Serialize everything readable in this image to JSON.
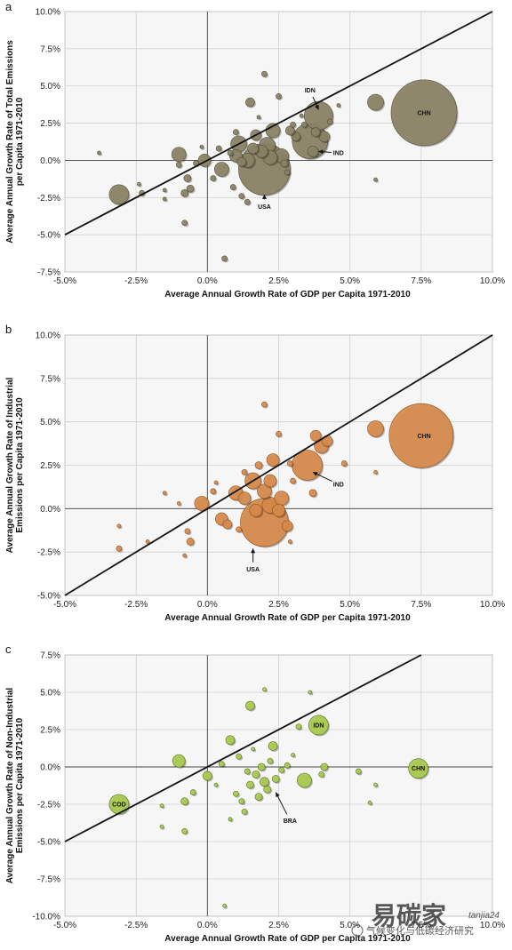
{
  "colors": {
    "panel_a_fill": "#8c8466",
    "panel_b_fill": "#d98c4c",
    "panel_c_fill": "#aacd4e",
    "plot_bg": "#f6f6f6",
    "grid": "#cfcfcf",
    "diagonal": "#111111"
  },
  "watermark": {
    "logo_text": "易碳家",
    "logo_sub": "tanjia24",
    "caption": "气候变化与低碳经济研究"
  },
  "chart_data": [
    {
      "panel": "a",
      "type": "scatter",
      "xlabel": "Average Annual Growth Rate of GDP per Capita 1971-2010",
      "ylabel_lines": [
        "Average Annual Growth Rate of Total Emissions",
        "per Capita 1971-2010"
      ],
      "xlim": [
        -5,
        10
      ],
      "ylim": [
        -7.5,
        10
      ],
      "xticks": [
        "-5.0%",
        "-2.5%",
        "0.0%",
        "2.5%",
        "5.0%",
        "7.5%",
        "10.0%"
      ],
      "yticks": [
        "-7.5%",
        "-5.0%",
        "-2.5%",
        "0.0%",
        "2.5%",
        "5.0%",
        "7.5%",
        "10.0%"
      ],
      "diagonal": [
        [
          -5,
          -5
        ],
        [
          10,
          10
        ]
      ],
      "annotations": [
        {
          "text": "CHN",
          "x": 7.6,
          "y": 3.2,
          "style": "inside"
        },
        {
          "text": "IDN",
          "x": 3.6,
          "y": 4.7,
          "style": "arrow",
          "to_x": 3.9,
          "to_y": 3.4
        },
        {
          "text": "IND",
          "x": 4.6,
          "y": 0.5,
          "style": "arrow",
          "to_x": 3.9,
          "to_y": 0.6
        },
        {
          "text": "USA",
          "x": 2.0,
          "y": -3.1,
          "style": "arrow",
          "to_x": 2.0,
          "to_y": -2.3
        }
      ],
      "points": [
        {
          "x": 7.6,
          "y": 3.2,
          "r": 37
        },
        {
          "x": 3.9,
          "y": 3.0,
          "r": 16
        },
        {
          "x": 3.6,
          "y": 1.3,
          "r": 20
        },
        {
          "x": 2.0,
          "y": -0.6,
          "r": 29
        },
        {
          "x": -3.1,
          "y": -2.3,
          "r": 11
        },
        {
          "x": 5.9,
          "y": 3.9,
          "r": 9
        },
        {
          "x": -1.0,
          "y": 0.4,
          "r": 8
        },
        {
          "x": 0.5,
          "y": -0.6,
          "r": 8
        },
        {
          "x": -0.1,
          "y": 0.0,
          "r": 7
        },
        {
          "x": 1.1,
          "y": 1.1,
          "r": 9
        },
        {
          "x": 1.5,
          "y": 3.9,
          "r": 5
        },
        {
          "x": 1.7,
          "y": 1.7,
          "r": 6
        },
        {
          "x": 2.1,
          "y": 1.0,
          "r": 9
        },
        {
          "x": 2.3,
          "y": 2.0,
          "r": 8
        },
        {
          "x": 2.6,
          "y": 0.3,
          "r": 8
        },
        {
          "x": 1.4,
          "y": 0.0,
          "r": 8
        },
        {
          "x": 1.0,
          "y": 0.3,
          "r": 7
        },
        {
          "x": 3.1,
          "y": 1.6,
          "r": 5
        },
        {
          "x": 4.1,
          "y": 1.6,
          "r": 6
        },
        {
          "x": 3.8,
          "y": 1.9,
          "r": 5
        },
        {
          "x": 3.7,
          "y": 0.6,
          "r": 6
        },
        {
          "x": 2.9,
          "y": 2.0,
          "r": 5
        },
        {
          "x": 1.9,
          "y": 0.6,
          "r": 7
        },
        {
          "x": 1.6,
          "y": 0.8,
          "r": 6
        },
        {
          "x": 2.2,
          "y": 0.2,
          "r": 8
        },
        {
          "x": 1.2,
          "y": -0.1,
          "r": 5
        },
        {
          "x": -0.8,
          "y": -2.2,
          "r": 4
        },
        {
          "x": -0.6,
          "y": -1.9,
          "r": 4
        },
        {
          "x": -0.7,
          "y": -1.2,
          "r": 4
        },
        {
          "x": -0.8,
          "y": -4.2,
          "r": 3
        },
        {
          "x": -2.3,
          "y": -2.2,
          "r": 3
        },
        {
          "x": 0.6,
          "y": -6.6,
          "r": 3
        },
        {
          "x": 2.0,
          "y": 5.8,
          "r": 3
        },
        {
          "x": 2.5,
          "y": 4.3,
          "r": 3
        },
        {
          "x": 0.9,
          "y": -1.8,
          "r": 3
        },
        {
          "x": 1.2,
          "y": -2.4,
          "r": 3
        },
        {
          "x": 1.4,
          "y": -2.8,
          "r": 3
        },
        {
          "x": 0.2,
          "y": -1.2,
          "r": 3
        },
        {
          "x": -0.4,
          "y": -0.2,
          "r": 3
        },
        {
          "x": -1.0,
          "y": -0.3,
          "r": 3
        },
        {
          "x": 0.4,
          "y": 0.8,
          "r": 3
        },
        {
          "x": 0.8,
          "y": 0.5,
          "r": 3
        },
        {
          "x": 2.7,
          "y": -0.2,
          "r": 4
        },
        {
          "x": 3.0,
          "y": 2.4,
          "r": 3
        },
        {
          "x": 3.4,
          "y": 2.4,
          "r": 3
        },
        {
          "x": 4.3,
          "y": 2.6,
          "r": 3
        },
        {
          "x": 4.6,
          "y": 3.7,
          "r": 2
        },
        {
          "x": 5.9,
          "y": -1.3,
          "r": 2
        },
        {
          "x": -2.4,
          "y": -1.6,
          "r": 2
        },
        {
          "x": -1.5,
          "y": -2.0,
          "r": 2
        },
        {
          "x": -1.5,
          "y": -2.6,
          "r": 2
        },
        {
          "x": -0.2,
          "y": 0.9,
          "r": 2
        },
        {
          "x": 1.8,
          "y": 2.9,
          "r": 2
        },
        {
          "x": 2.8,
          "y": -0.8,
          "r": 3
        },
        {
          "x": -3.8,
          "y": 0.5,
          "r": 2
        },
        {
          "x": 3.3,
          "y": 3.0,
          "r": 2
        },
        {
          "x": 1.0,
          "y": 1.9,
          "r": 3
        }
      ]
    },
    {
      "panel": "b",
      "type": "scatter",
      "xlabel": "Average Annual Growth Rate of GDP per Capita 1971-2010",
      "ylabel_lines": [
        "Average Annual Growth Rate of Industrial",
        "Emissions per Capita 1971-2010"
      ],
      "xlim": [
        -5,
        10
      ],
      "ylim": [
        -5,
        10
      ],
      "xticks": [
        "-5.0%",
        "-2.5%",
        "0.0%",
        "2.5%",
        "5.0%",
        "7.5%",
        "10.0%"
      ],
      "yticks": [
        "-5.0%",
        "-2.5%",
        "0.0%",
        "2.5%",
        "5.0%",
        "7.5%",
        "10.0%"
      ],
      "diagonal": [
        [
          -5,
          -5
        ],
        [
          10,
          10
        ]
      ],
      "annotations": [
        {
          "text": "CHN",
          "x": 7.6,
          "y": 4.2,
          "style": "inside"
        },
        {
          "text": "IND",
          "x": 4.6,
          "y": 1.4,
          "style": "arrow",
          "to_x": 3.7,
          "to_y": 2.1
        },
        {
          "text": "USA",
          "x": 1.6,
          "y": -3.5,
          "style": "arrow",
          "to_x": 1.6,
          "to_y": -2.3
        }
      ],
      "points": [
        {
          "x": 7.5,
          "y": 4.2,
          "r": 36
        },
        {
          "x": 3.5,
          "y": 2.5,
          "r": 17
        },
        {
          "x": 2.0,
          "y": -0.8,
          "r": 27
        },
        {
          "x": 5.9,
          "y": 4.6,
          "r": 9
        },
        {
          "x": 4.0,
          "y": 3.6,
          "r": 8
        },
        {
          "x": 4.2,
          "y": 3.9,
          "r": 6
        },
        {
          "x": 3.8,
          "y": 4.2,
          "r": 6
        },
        {
          "x": 2.3,
          "y": 2.8,
          "r": 7
        },
        {
          "x": 1.6,
          "y": 1.6,
          "r": 9
        },
        {
          "x": 1.0,
          "y": 0.9,
          "r": 8
        },
        {
          "x": 1.3,
          "y": 0.6,
          "r": 7
        },
        {
          "x": 2.2,
          "y": 1.6,
          "r": 7
        },
        {
          "x": 2.0,
          "y": 1.0,
          "r": 8
        },
        {
          "x": 2.6,
          "y": 0.6,
          "r": 8
        },
        {
          "x": 2.2,
          "y": 0.2,
          "r": 9
        },
        {
          "x": 2.5,
          "y": -0.1,
          "r": 7
        },
        {
          "x": 1.7,
          "y": -0.1,
          "r": 7
        },
        {
          "x": 2.8,
          "y": -1.0,
          "r": 6
        },
        {
          "x": -0.2,
          "y": 0.3,
          "r": 8
        },
        {
          "x": 0.5,
          "y": -0.6,
          "r": 7
        },
        {
          "x": -0.6,
          "y": -1.9,
          "r": 4
        },
        {
          "x": 0.7,
          "y": -0.9,
          "r": 5
        },
        {
          "x": -3.1,
          "y": -2.3,
          "r": 3
        },
        {
          "x": 2.0,
          "y": 6.0,
          "r": 3
        },
        {
          "x": 2.5,
          "y": 4.3,
          "r": 3
        },
        {
          "x": 3.7,
          "y": 0.9,
          "r": 4
        },
        {
          "x": 4.8,
          "y": 2.6,
          "r": 3
        },
        {
          "x": 1.3,
          "y": 2.1,
          "r": 3
        },
        {
          "x": 0.2,
          "y": 1.0,
          "r": 3
        },
        {
          "x": -1.5,
          "y": 0.9,
          "r": 2
        },
        {
          "x": -0.7,
          "y": -1.3,
          "r": 3
        },
        {
          "x": -0.8,
          "y": -2.7,
          "r": 2
        },
        {
          "x": 2.9,
          "y": 2.6,
          "r": 3
        },
        {
          "x": 0.3,
          "y": 1.5,
          "r": 2
        },
        {
          "x": -1.0,
          "y": 0.3,
          "r": 2
        },
        {
          "x": -3.1,
          "y": -1.0,
          "r": 2
        },
        {
          "x": 1.8,
          "y": 2.5,
          "r": 4
        },
        {
          "x": 3.0,
          "y": 1.6,
          "r": 3
        },
        {
          "x": 5.9,
          "y": 2.1,
          "r": 2
        },
        {
          "x": -2.1,
          "y": -1.9,
          "r": 2
        },
        {
          "x": 1.1,
          "y": -1.2,
          "r": 3
        },
        {
          "x": 2.9,
          "y": -1.9,
          "r": 2
        }
      ]
    },
    {
      "panel": "c",
      "type": "scatter",
      "xlabel": "Average Annual Growth Rate of GDP per Capita 1971-2010",
      "ylabel_lines": [
        "Average Annual Growth Rate of Non-Industrial",
        "Emissions per Capita 1971-2010"
      ],
      "xlim": [
        -5,
        10
      ],
      "ylim": [
        -10,
        7.5
      ],
      "xticks": [
        "-5.0%",
        "-2.5%",
        "0.0%",
        "2.5%",
        "5.0%",
        "7.5%",
        "10.0%"
      ],
      "yticks": [
        "-10.0%",
        "-7.5%",
        "-5.0%",
        "-2.5%",
        "0.0%",
        "2.5%",
        "5.0%",
        "7.5%"
      ],
      "diagonal": [
        [
          -5,
          -5
        ],
        [
          7.5,
          7.5
        ]
      ],
      "annotations": [
        {
          "text": "CHN",
          "x": 7.4,
          "y": -0.1,
          "style": "inside"
        },
        {
          "text": "IDN",
          "x": 3.9,
          "y": 2.8,
          "style": "inside"
        },
        {
          "text": "COD",
          "x": -3.1,
          "y": -2.5,
          "style": "inside"
        },
        {
          "text": "BRA",
          "x": 2.9,
          "y": -3.6,
          "style": "arrow",
          "to_x": 2.4,
          "to_y": -1.7
        }
      ],
      "points": [
        {
          "x": 7.4,
          "y": -0.1,
          "r": 11
        },
        {
          "x": 3.9,
          "y": 2.8,
          "r": 11
        },
        {
          "x": -3.1,
          "y": -2.5,
          "r": 11
        },
        {
          "x": 3.4,
          "y": -0.9,
          "r": 8
        },
        {
          "x": -1.0,
          "y": 0.4,
          "r": 7
        },
        {
          "x": 1.5,
          "y": 4.1,
          "r": 5
        },
        {
          "x": 0.0,
          "y": -0.6,
          "r": 5
        },
        {
          "x": 0.8,
          "y": 1.8,
          "r": 5
        },
        {
          "x": 2.3,
          "y": 1.4,
          "r": 5
        },
        {
          "x": 2.0,
          "y": -1.0,
          "r": 5
        },
        {
          "x": 1.7,
          "y": -0.5,
          "r": 4
        },
        {
          "x": 1.9,
          "y": 0.0,
          "r": 4
        },
        {
          "x": 2.1,
          "y": -1.5,
          "r": 4
        },
        {
          "x": 1.5,
          "y": -1.2,
          "r": 4
        },
        {
          "x": 2.4,
          "y": -0.8,
          "r": 4
        },
        {
          "x": 1.8,
          "y": -2.0,
          "r": 4
        },
        {
          "x": 1.2,
          "y": -2.3,
          "r": 3
        },
        {
          "x": 1.3,
          "y": -3.0,
          "r": 3
        },
        {
          "x": 1.0,
          "y": -1.8,
          "r": 3
        },
        {
          "x": 2.6,
          "y": -0.2,
          "r": 3
        },
        {
          "x": 3.2,
          "y": 2.7,
          "r": 3
        },
        {
          "x": 4.0,
          "y": -0.5,
          "r": 3
        },
        {
          "x": 4.1,
          "y": 0.0,
          "r": 4
        },
        {
          "x": 5.3,
          "y": -0.3,
          "r": 3
        },
        {
          "x": -0.8,
          "y": -2.3,
          "r": 4
        },
        {
          "x": -0.8,
          "y": -4.3,
          "r": 3
        },
        {
          "x": -0.5,
          "y": -1.7,
          "r": 3
        },
        {
          "x": -1.6,
          "y": -2.6,
          "r": 2
        },
        {
          "x": 0.6,
          "y": -9.3,
          "r": 2
        },
        {
          "x": 2.0,
          "y": 5.2,
          "r": 2
        },
        {
          "x": 3.6,
          "y": 5.0,
          "r": 2
        },
        {
          "x": 0.5,
          "y": 0.2,
          "r": 3
        },
        {
          "x": 1.1,
          "y": 0.7,
          "r": 3
        },
        {
          "x": 2.8,
          "y": 0.1,
          "r": 3
        },
        {
          "x": 1.6,
          "y": 1.2,
          "r": 2
        },
        {
          "x": 0.3,
          "y": -1.2,
          "r": 2
        },
        {
          "x": 5.9,
          "y": -1.2,
          "r": 2
        },
        {
          "x": 5.7,
          "y": -2.4,
          "r": 2
        },
        {
          "x": -1.6,
          "y": -4.0,
          "r": 2
        },
        {
          "x": 3.0,
          "y": 0.8,
          "r": 2
        },
        {
          "x": 0.8,
          "y": -3.5,
          "r": 2
        },
        {
          "x": 2.2,
          "y": 0.4,
          "r": 3
        },
        {
          "x": 1.4,
          "y": -0.3,
          "r": 3
        }
      ]
    }
  ]
}
